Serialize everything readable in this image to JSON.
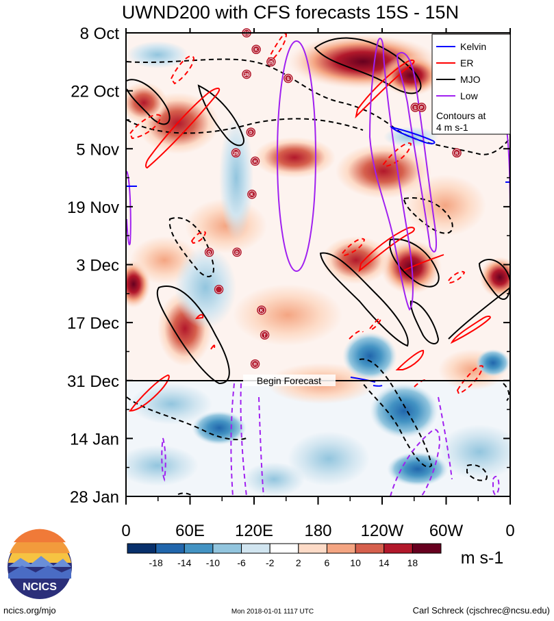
{
  "chart_data": {
    "type": "heatmap",
    "title": "UWND200 with CFS forecasts  15S - 15N",
    "x_ticks": [
      "0",
      "60E",
      "120E",
      "180",
      "120W",
      "60W",
      "0"
    ],
    "x_tick_lon": [
      0,
      60,
      120,
      180,
      240,
      300,
      360
    ],
    "y_ticks": [
      "8 Oct",
      "22 Oct",
      "5 Nov",
      "19 Nov",
      "3 Dec",
      "17 Dec",
      "31 Dec",
      "14 Jan",
      "28 Jan"
    ],
    "y_tick_day": [
      0,
      14,
      28,
      42,
      56,
      70,
      84,
      98,
      112
    ],
    "forecast_start_day": 84,
    "forecast_label": "Begin Forecast",
    "colorbar": {
      "unit": "m s-1",
      "labels": [
        "-18",
        "-14",
        "-10",
        "-6",
        "-2",
        "2",
        "6",
        "10",
        "14",
        "18"
      ],
      "colors": [
        "#08306b",
        "#2166ac",
        "#4393c3",
        "#92c5de",
        "#d1e5f0",
        "#ffffff",
        "#fddbc7",
        "#f4a582",
        "#d6604d",
        "#b2182b",
        "#67001f"
      ]
    },
    "legend": {
      "placement": "top-right",
      "entries": [
        {
          "name": "Kelvin",
          "color": "#0000ff"
        },
        {
          "name": "ER",
          "color": "#ff0000"
        },
        {
          "name": "MJO",
          "color": "#000000"
        },
        {
          "name": "Low",
          "color": "#a020f0"
        }
      ],
      "note": [
        "Contours at",
        "4 m s-1"
      ]
    },
    "storms": [
      {
        "label": "23",
        "lon": 113,
        "day": 0
      },
      {
        "label": "K",
        "lon": 122,
        "day": 4
      },
      {
        "label": "25",
        "lon": 136,
        "day": 7
      },
      {
        "label": "26",
        "lon": 113,
        "day": 10
      },
      {
        "label": "S",
        "lon": 152,
        "day": 11
      },
      {
        "label": "S",
        "lon": 271,
        "day": 18
      },
      {
        "label": "P",
        "lon": 277,
        "day": 18
      },
      {
        "label": "D",
        "lon": 117,
        "day": 24
      },
      {
        "label": "29",
        "lon": 103,
        "day": 29
      },
      {
        "label": "R",
        "lon": 310,
        "day": 29
      },
      {
        "label": "H",
        "lon": 121,
        "day": 31
      },
      {
        "label": "K",
        "lon": 118,
        "day": 39
      },
      {
        "label": "Q",
        "lon": 78,
        "day": 53
      },
      {
        "label": "D",
        "lon": 104,
        "day": 53
      },
      {
        "label": "",
        "lon": 87,
        "day": 62
      },
      {
        "label": "K",
        "lon": 127,
        "day": 67
      },
      {
        "label": "T",
        "lon": 130,
        "day": 73
      },
      {
        "label": "H",
        "lon": 121,
        "day": 80
      }
    ]
  },
  "logo": {
    "text": "NCICS"
  },
  "footer": {
    "url": "ncics.org/mjo",
    "timestamp": "Mon 2018-01-01 1117 UTC",
    "author": "Carl Schreck (cjschrec@ncsu.edu)"
  }
}
